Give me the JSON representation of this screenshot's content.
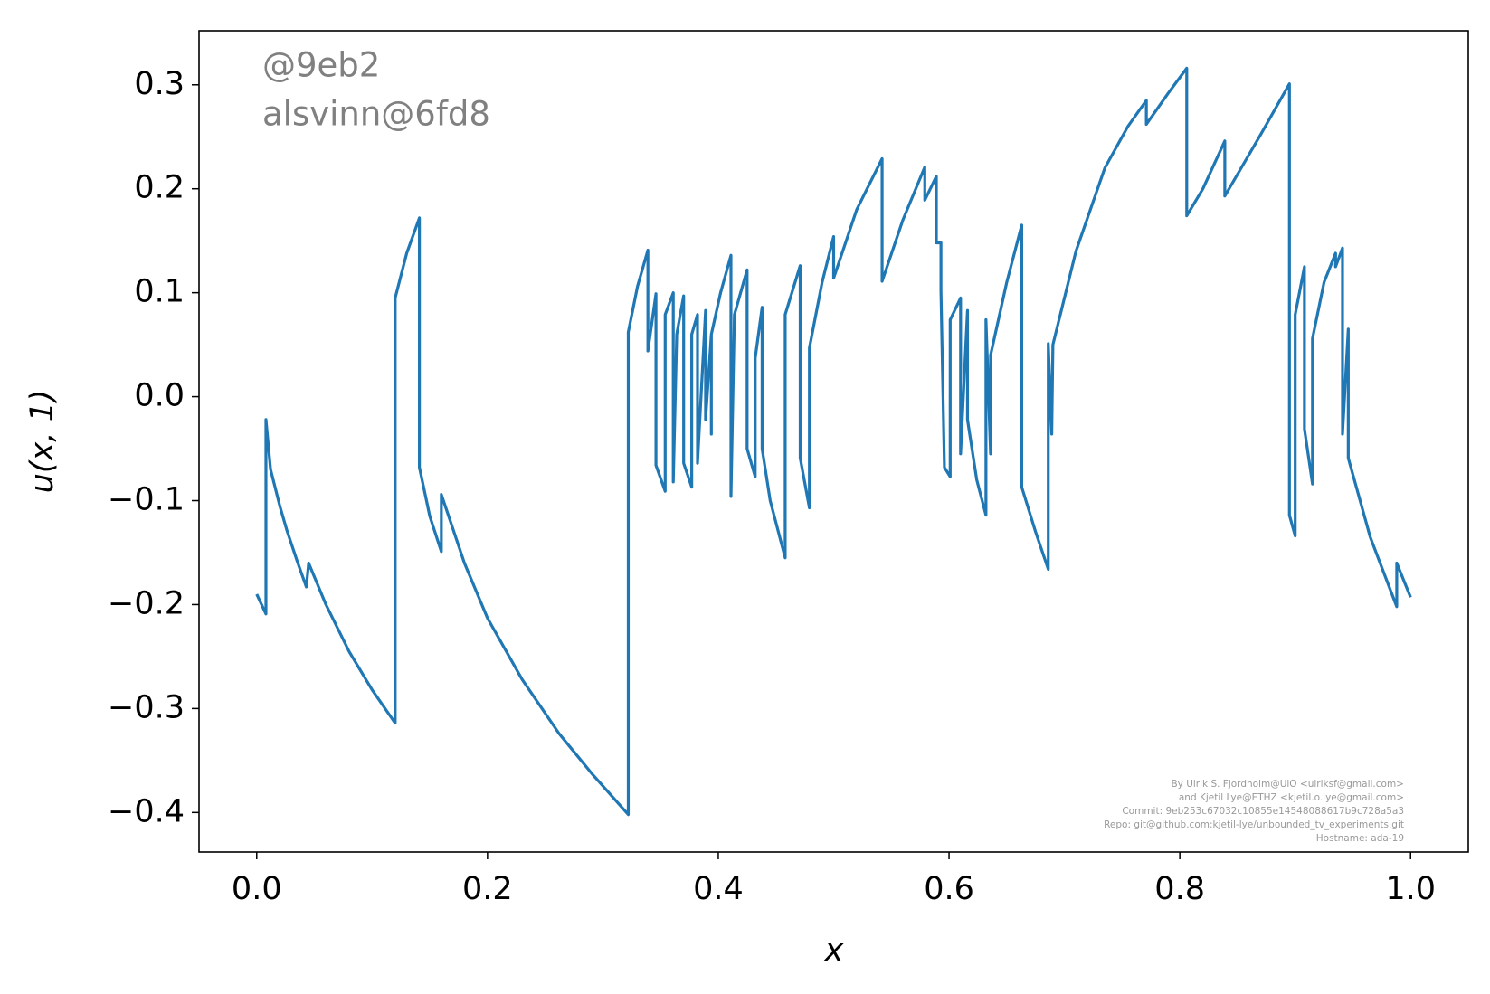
{
  "chart_data": {
    "type": "line",
    "xlabel": "x",
    "ylabel": "u(x, 1)",
    "annotations": [
      "@9eb2",
      "alsvinn@6fd8"
    ],
    "credits": [
      "By Ulrik S. Fjordholm@UiO <ulriksf@gmail.com>",
      "and Kjetil Lye@ETHZ <kjetil.o.lye@gmail.com>",
      "Commit: 9eb253c67032c10855e14548088617b9c728a5a3",
      "Repo: git@github.com:kjetil-lye/unbounded_tv_experiments.git",
      "Hostname: ada-19"
    ],
    "x": [
      0,
      0.008,
      0.008,
      0.012,
      0.02,
      0.026,
      0.035,
      0.043,
      0.045,
      0.06,
      0.08,
      0.1,
      0.12,
      0.12,
      0.13,
      0.141,
      0.141,
      0.15,
      0.16,
      0.16,
      0.18,
      0.2,
      0.23,
      0.262,
      0.29,
      0.322,
      0.322,
      0.33,
      0.339,
      0.339,
      0.346,
      0.346,
      0.354,
      0.354,
      0.361,
      0.361,
      0.364,
      0.37,
      0.37,
      0.377,
      0.377,
      0.382,
      0.382,
      0.389,
      0.389,
      0.394,
      0.394,
      0.394,
      0.402,
      0.411,
      0.411,
      0.414,
      0.425,
      0.425,
      0.432,
      0.432,
      0.438,
      0.438,
      0.445,
      0.458,
      0.458,
      0.471,
      0.471,
      0.479,
      0.479,
      0.49,
      0.5,
      0.5,
      0.52,
      0.542,
      0.542,
      0.56,
      0.579,
      0.579,
      0.589,
      0.589,
      0.593,
      0.593,
      0.596,
      0.601,
      0.601,
      0.61,
      0.61,
      0.616,
      0.616,
      0.624,
      0.632,
      0.632,
      0.636,
      0.636,
      0.65,
      0.663,
      0.663,
      0.675,
      0.686,
      0.686,
      0.689,
      0.69,
      0.71,
      0.735,
      0.755,
      0.771,
      0.771,
      0.79,
      0.806,
      0.806,
      0.82,
      0.839,
      0.839,
      0.87,
      0.895,
      0.895,
      0.9,
      0.9,
      0.908,
      0.908,
      0.915,
      0.915,
      0.925,
      0.935,
      0.935,
      0.941,
      0.941,
      0.946,
      0.946,
      0.965,
      0.988,
      0.988,
      1
    ],
    "series": [
      {
        "name": "u",
        "color": "#1f77b4",
        "values": [
          -0.19,
          -0.209,
          -0.022,
          -0.07,
          -0.105,
          -0.128,
          -0.158,
          -0.183,
          -0.16,
          -0.2,
          -0.245,
          -0.282,
          -0.314,
          0.095,
          0.138,
          0.172,
          -0.068,
          -0.115,
          -0.149,
          -0.094,
          -0.16,
          -0.213,
          -0.272,
          -0.324,
          -0.362,
          -0.402,
          0.062,
          0.106,
          0.141,
          0.044,
          0.099,
          -0.066,
          -0.091,
          0.079,
          0.1,
          -0.082,
          0.06,
          0.097,
          -0.064,
          -0.087,
          0.06,
          0.079,
          -0.064,
          0.083,
          -0.022,
          0.06,
          -0.036,
          0.06,
          0.1,
          0.136,
          -0.096,
          0.079,
          0.122,
          -0.05,
          -0.077,
          0.037,
          0.086,
          -0.05,
          -0.1,
          -0.155,
          0.079,
          0.126,
          -0.059,
          -0.107,
          0.047,
          0.11,
          0.154,
          0.114,
          0.18,
          0.229,
          0.111,
          0.17,
          0.221,
          0.189,
          0.212,
          0.148,
          0.148,
          0.102,
          -0.068,
          -0.077,
          0.074,
          0.095,
          -0.055,
          0.083,
          -0.022,
          -0.08,
          -0.114,
          0.074,
          -0.055,
          0.04,
          0.11,
          0.165,
          -0.087,
          -0.13,
          -0.166,
          0.051,
          -0.036,
          0.05,
          0.14,
          0.22,
          0.26,
          0.285,
          0.262,
          0.292,
          0.316,
          0.174,
          0.2,
          0.246,
          0.193,
          0.252,
          0.301,
          -0.114,
          -0.134,
          0.079,
          0.125,
          -0.031,
          -0.084,
          0.056,
          0.11,
          0.138,
          0.125,
          0.143,
          -0.036,
          0.065,
          -0.059,
          -0.135,
          -0.202,
          -0.16,
          -0.193
        ]
      }
    ],
    "xlim": [
      -0.05,
      1.05
    ],
    "ylim": [
      -0.438,
      0.352
    ],
    "xticks": [
      {
        "value": 0,
        "label": "0.0"
      },
      {
        "value": 0.2,
        "label": "0.2"
      },
      {
        "value": 0.4,
        "label": "0.4"
      },
      {
        "value": 0.6,
        "label": "0.6"
      },
      {
        "value": 0.8,
        "label": "0.8"
      },
      {
        "value": 1,
        "label": "1.0"
      }
    ],
    "yticks": [
      {
        "value": -0.4,
        "label": "−0.4"
      },
      {
        "value": -0.3,
        "label": "−0.3"
      },
      {
        "value": -0.2,
        "label": "−0.2"
      },
      {
        "value": -0.1,
        "label": "−0.1"
      },
      {
        "value": 0,
        "label": "0.0"
      },
      {
        "value": 0.1,
        "label": "0.1"
      },
      {
        "value": 0.2,
        "label": "0.2"
      },
      {
        "value": 0.3,
        "label": "0.3"
      }
    ],
    "grid": false
  }
}
